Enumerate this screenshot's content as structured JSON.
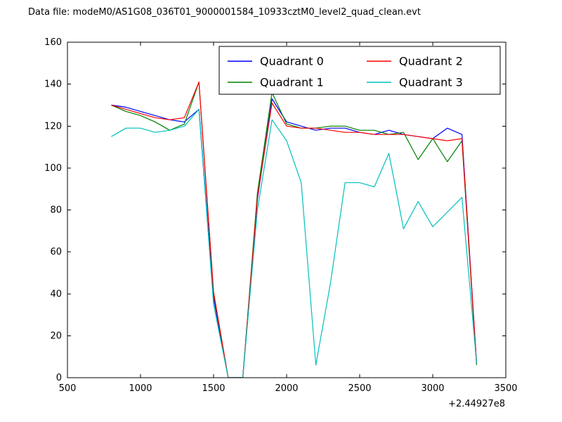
{
  "title": "Data file: modeM0/AS1G08_036T01_9000001584_10933cztM0_level2_quad_clean.evt",
  "colors": {
    "background": "#ffffff",
    "frame": "#000000",
    "text": "#000000",
    "legend_edge": "#000000",
    "legend_face": "#ffffff"
  },
  "chart_data": {
    "type": "line",
    "title": "Data file: modeM0/AS1G08_036T01_9000001584_10933cztM0_level2_quad_clean.evt",
    "xlabel": "",
    "ylabel": "",
    "xlim": [
      500,
      3500
    ],
    "ylim": [
      0,
      160
    ],
    "xticks": [
      500,
      1000,
      1500,
      2000,
      2500,
      3000,
      3500
    ],
    "yticks": [
      0,
      20,
      40,
      60,
      80,
      100,
      120,
      140,
      160
    ],
    "x_offset_label": "+2.44927e8",
    "grid": false,
    "legend": {
      "position": "upper center",
      "columns": 2
    },
    "x": [
      800,
      900,
      1000,
      1100,
      1200,
      1300,
      1400,
      1500,
      1600,
      1700,
      1800,
      1900,
      2000,
      2100,
      2200,
      2300,
      2400,
      2500,
      2600,
      2700,
      2800,
      2900,
      3000,
      3100,
      3200,
      3300
    ],
    "series": [
      {
        "name": "Quadrant 0",
        "color": "#0000ff",
        "values": [
          130,
          129,
          127,
          125,
          123,
          122,
          128,
          38,
          0,
          0,
          85,
          133,
          122,
          120,
          118,
          119,
          119,
          117,
          116,
          118,
          116,
          115,
          114,
          119,
          116,
          7
        ]
      },
      {
        "name": "Quadrant 1",
        "color": "#008000",
        "values": [
          130,
          127,
          125,
          122,
          118,
          121,
          141,
          40,
          0,
          0,
          88,
          136,
          121,
          119,
          119,
          120,
          120,
          118,
          118,
          116,
          117,
          104,
          114,
          103,
          113,
          6
        ]
      },
      {
        "name": "Quadrant 2",
        "color": "#ff0000",
        "values": [
          130,
          128,
          126,
          124,
          123,
          124,
          141,
          41,
          0,
          0,
          86,
          131,
          120,
          119,
          119,
          118,
          117,
          117,
          116,
          116,
          116,
          115,
          114,
          113,
          114,
          7
        ]
      },
      {
        "name": "Quadrant 3",
        "color": "#00bfbf",
        "values": [
          115,
          119,
          119,
          117,
          118,
          120,
          128,
          35,
          0,
          0,
          80,
          123,
          113,
          93,
          6,
          45,
          93,
          93,
          91,
          107,
          71,
          84,
          72,
          79,
          86,
          7
        ]
      }
    ]
  }
}
